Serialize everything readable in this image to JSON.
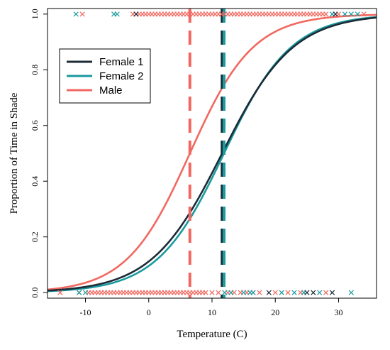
{
  "chart_data": {
    "type": "line",
    "xlabel": "Temperature (C)",
    "ylabel": "Proportion of Time in Shade",
    "xlim": [
      -16,
      36
    ],
    "ylim": [
      -0.02,
      1.02
    ],
    "x_ticks": [
      -10,
      0,
      10,
      20,
      30
    ],
    "y_ticks": [
      0.0,
      0.2,
      0.4,
      0.6,
      0.8,
      1.0
    ],
    "y_tick_labels": [
      "0.0",
      "0.2",
      "0.4",
      "0.6",
      "0.8",
      "1.0"
    ],
    "grid": false,
    "legend_position": "upper-left",
    "series": [
      {
        "name": "Female 1",
        "color": "#1c2b36",
        "curve": "logistic",
        "midpoint": 11.6,
        "scale": 5.6,
        "threshold_x": 11.6,
        "points_at_1": [
          -2,
          29.5
        ],
        "points_at_0": [
          19,
          25,
          26,
          29
        ]
      },
      {
        "name": "Female 2",
        "color": "#1b9aa0",
        "curve": "logistic",
        "midpoint": 11.9,
        "scale": 5.3,
        "threshold_x": 11.9,
        "points_at_1": [
          -11.5,
          -5.5,
          -5,
          29,
          31,
          32,
          33
        ],
        "points_at_0": [
          -11,
          -10,
          12,
          13,
          15,
          16,
          16.5,
          21,
          23,
          24.5,
          27,
          32
        ]
      },
      {
        "name": "Male",
        "color": "#f26860",
        "curve": "logistic",
        "midpoint": 6.5,
        "scale": 5.0,
        "threshold_x": 6.5,
        "points_at_1": [
          -10.5,
          -2.5,
          -2,
          -1.5,
          -1,
          -0.5,
          0,
          0.5,
          1,
          1.5,
          2,
          2.5,
          3,
          3.5,
          4,
          4.5,
          5,
          5.5,
          6,
          6.5,
          7,
          7.5,
          8,
          8.5,
          9,
          9.5,
          10,
          10.5,
          11,
          11.5,
          12,
          12.5,
          13,
          13.5,
          14,
          14.5,
          15,
          15.5,
          16,
          16.5,
          17,
          17.5,
          18,
          18.5,
          19,
          19.5,
          20,
          20.5,
          21,
          21.5,
          22,
          22.5,
          23,
          23.5,
          24,
          24.5,
          25,
          25.5,
          26,
          26.5,
          27,
          27.5,
          28,
          30,
          34
        ],
        "points_at_0": [
          -14,
          -11,
          -9.5,
          -9,
          -8.5,
          -8,
          -7.5,
          -7,
          -6.5,
          -6,
          -5.5,
          -5,
          -4.5,
          -4,
          -3.5,
          -3,
          -2.5,
          -2,
          -1.5,
          -1,
          -0.5,
          0,
          0.5,
          1,
          1.5,
          2,
          2.5,
          3,
          3.5,
          4,
          4.5,
          5,
          5.5,
          6,
          6.5,
          7,
          7.5,
          8,
          8.5,
          9,
          10,
          11,
          12.5,
          13.5,
          14.5,
          15.5,
          16.5,
          17.5,
          20,
          22,
          24,
          28
        ]
      }
    ]
  }
}
